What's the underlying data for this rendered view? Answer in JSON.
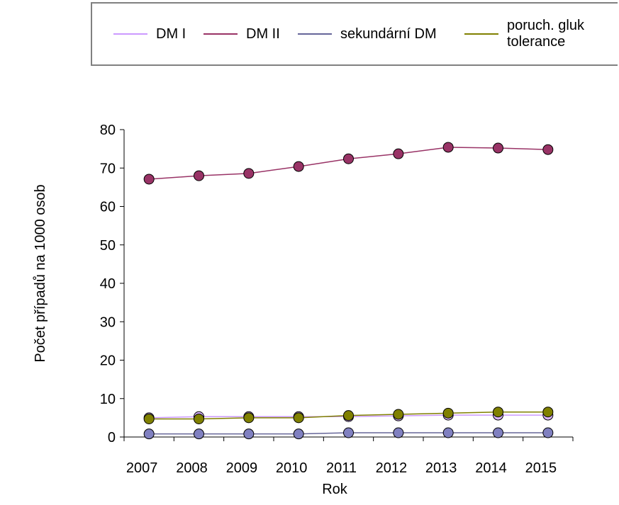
{
  "chart_data": {
    "type": "line",
    "categories": [
      "2007",
      "2008",
      "2009",
      "2010",
      "2011",
      "2012",
      "2013",
      "2014",
      "2015"
    ],
    "series": [
      {
        "name": "DM I",
        "color": "#cc99ff",
        "values": [
          5.0,
          5.3,
          5.3,
          5.3,
          5.3,
          5.5,
          5.7,
          5.7,
          5.7
        ]
      },
      {
        "name": "DM II",
        "color": "#993366",
        "values": [
          67.1,
          68.0,
          68.6,
          70.4,
          72.4,
          73.7,
          75.4,
          75.2,
          74.8
        ]
      },
      {
        "name": "sekundární DM",
        "color": "#666699",
        "values": [
          0.8,
          0.8,
          0.8,
          0.8,
          1.1,
          1.1,
          1.1,
          1.1,
          1.1
        ]
      },
      {
        "name": "poruch. gluk tolerance",
        "color": "#808000",
        "values": [
          4.7,
          4.7,
          5.0,
          5.0,
          5.6,
          5.9,
          6.2,
          6.5,
          6.5
        ]
      }
    ],
    "x_label": "Rok",
    "y_label": "Počet případů na 1000 osob",
    "ylim": [
      0,
      80
    ],
    "yticks": [
      0,
      10,
      20,
      30,
      40,
      50,
      60,
      70,
      80
    ]
  }
}
